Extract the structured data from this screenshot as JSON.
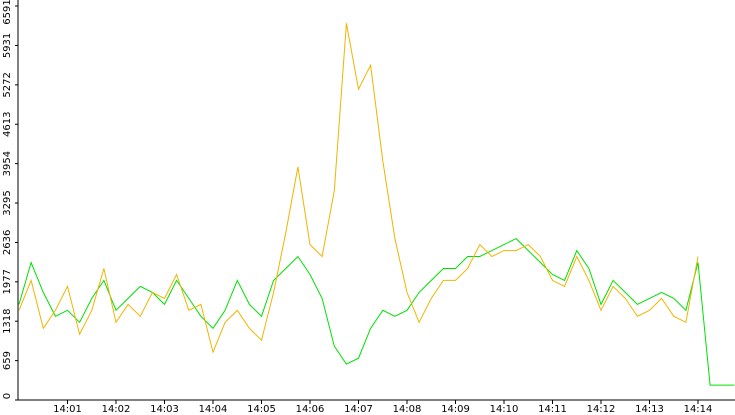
{
  "chart_data": {
    "type": "line",
    "categories": [
      null,
      null,
      null,
      null,
      "14:01",
      null,
      null,
      null,
      "14:02",
      null,
      null,
      null,
      "14:03",
      null,
      null,
      null,
      "14:04",
      null,
      null,
      null,
      "14:05",
      null,
      null,
      null,
      "14:06",
      null,
      null,
      null,
      "14:07",
      null,
      null,
      null,
      "14:08",
      null,
      null,
      null,
      "14:09",
      null,
      null,
      null,
      "14:10",
      null,
      null,
      null,
      "14:11",
      null,
      null,
      null,
      "14:12",
      null,
      null,
      null,
      "14:13",
      null,
      null,
      null,
      "14:14",
      null,
      null,
      null
    ],
    "series": [
      {
        "color": "#00e000",
        "values": [
          1600,
          2300,
          1800,
          1400,
          1500,
          1300,
          1700,
          2000,
          1500,
          1700,
          1900,
          1800,
          1600,
          2000,
          1700,
          1400,
          1200,
          1500,
          2000,
          1600,
          1400,
          2000,
          2200,
          2400,
          2100,
          1700,
          900,
          600,
          700,
          1200,
          1500,
          1400,
          1500,
          1800,
          2000,
          2200,
          2200,
          2400,
          2400,
          2500,
          2600,
          2700,
          2500,
          2300,
          2100,
          2000,
          2500,
          2200,
          1600,
          2000,
          1800,
          1600,
          1700,
          1800,
          1700,
          1500,
          2300,
          250,
          250,
          250
        ]
      },
      {
        "color": "#f0b400",
        "values": [
          1500,
          2000,
          1200,
          1500,
          1900,
          1100,
          1500,
          2200,
          1300,
          1600,
          1400,
          1800,
          1700,
          2100,
          1500,
          1600,
          800,
          1300,
          1500,
          1200,
          1000,
          1800,
          2800,
          3900,
          2600,
          2400,
          3500,
          6300,
          5200,
          5600,
          4000,
          2700,
          1800,
          1300,
          1700,
          2000,
          2000,
          2200,
          2600,
          2400,
          2500,
          2500,
          2600,
          2400,
          2000,
          1900,
          2400,
          2000,
          1500,
          1900,
          1700,
          1400,
          1500,
          1700,
          1400,
          1300,
          2400,
          null,
          null,
          null
        ]
      }
    ],
    "ylim": [
      0,
      6591
    ],
    "yticks": [
      0,
      659,
      1318,
      1977,
      2636,
      3295,
      3954,
      4613,
      5272,
      5931,
      6591
    ]
  }
}
